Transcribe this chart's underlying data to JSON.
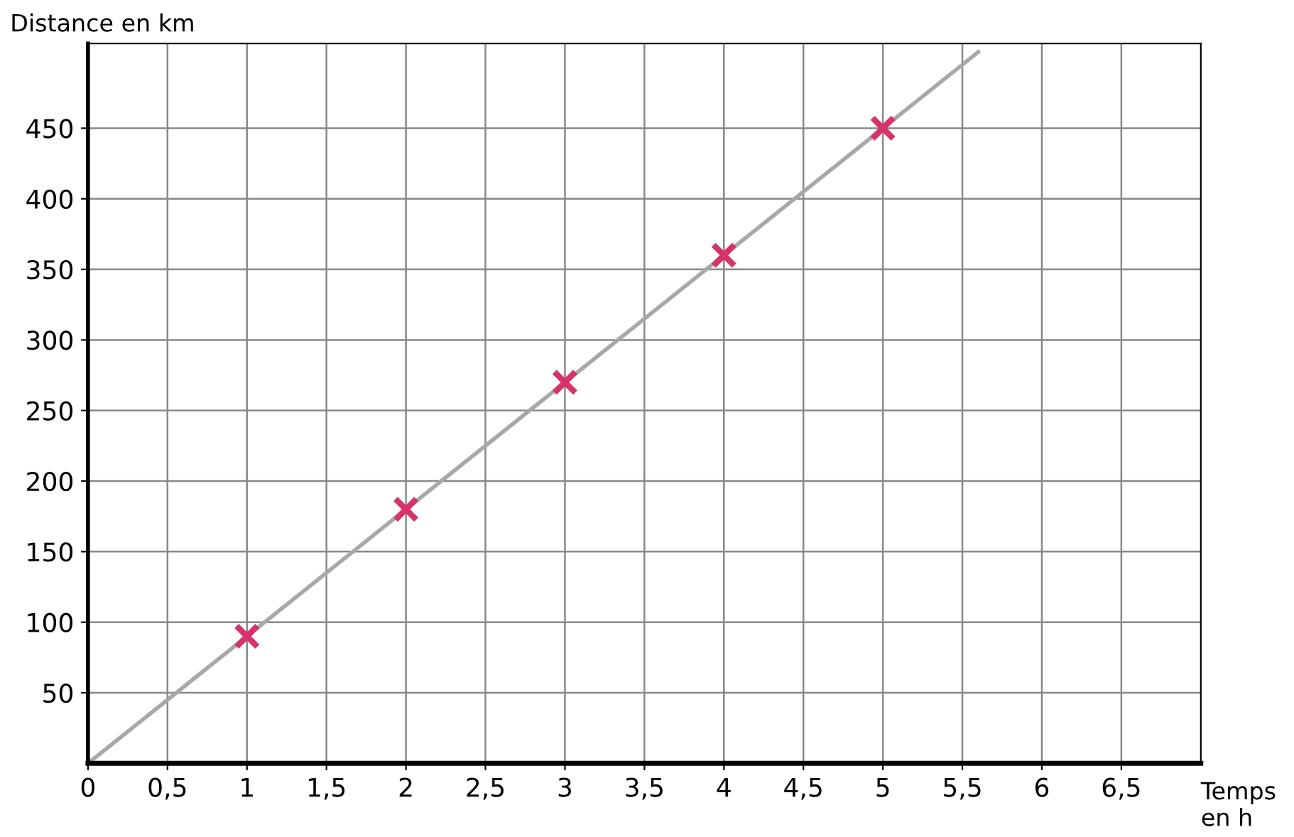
{
  "chart_data": {
    "type": "scatter",
    "xlabel": "Temps\nen h",
    "ylabel": "Distance en km",
    "series": [
      {
        "type": "line",
        "color": "#a8a8a8",
        "x": [
          0,
          5.6
        ],
        "values": [
          0,
          504
        ]
      },
      {
        "color": "#d6336c",
        "marker": "cross",
        "x": [
          1,
          2,
          3,
          4,
          5
        ],
        "values": [
          90,
          180,
          270,
          360,
          450
        ]
      }
    ],
    "xlim": [
      0,
      7
    ],
    "ylim": [
      0,
      510
    ],
    "xticks": [
      0,
      {
        "value": 0.5,
        "label": "0,5"
      },
      1,
      {
        "value": 1.5,
        "label": "1,5"
      },
      2,
      {
        "value": 2.5,
        "label": "2,5"
      },
      3,
      {
        "value": 3.5,
        "label": "3,5"
      },
      4,
      {
        "value": 4.5,
        "label": "4,5"
      },
      5,
      {
        "value": 5.5,
        "label": "5,5"
      },
      6,
      {
        "value": 6.5,
        "label": "6,5"
      }
    ],
    "yticks": [
      50,
      100,
      150,
      200,
      250,
      300,
      350,
      400,
      450
    ],
    "grid": true
  }
}
